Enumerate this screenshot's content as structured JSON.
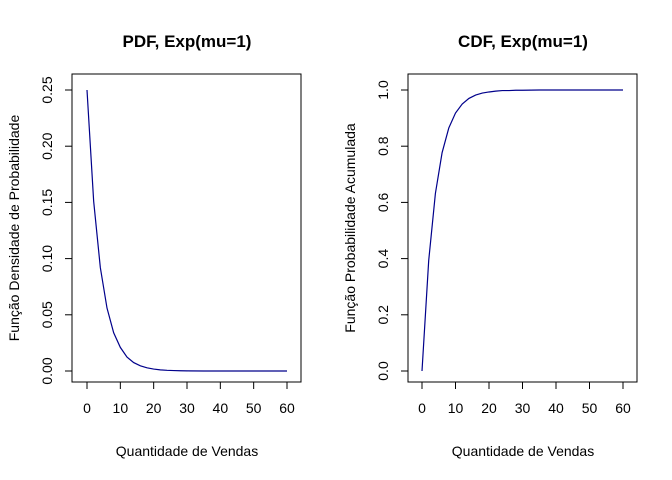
{
  "chart_data": [
    {
      "type": "line",
      "title": "PDF, Exp(mu=1)",
      "xlabel": "Quantidade de Vendas",
      "ylabel": "Função Densidade de Probabilidade",
      "xlim": [
        0,
        60
      ],
      "ylim": [
        0,
        0.25
      ],
      "xticks": [
        0,
        10,
        20,
        30,
        40,
        50,
        60
      ],
      "xtick_labels": [
        "0",
        "10",
        "20",
        "30",
        "40",
        "50",
        "60"
      ],
      "yticks": [
        0,
        0.05,
        0.1,
        0.15,
        0.2,
        0.25
      ],
      "ytick_labels": [
        "0.00",
        "0.05",
        "0.10",
        "0.15",
        "0.20",
        "0.25"
      ],
      "color": "#00008b",
      "grid": false,
      "series": [
        {
          "x": [
            0,
            2,
            4,
            6,
            8,
            10,
            12,
            14,
            16,
            18,
            20,
            22,
            24,
            26,
            28,
            30,
            35,
            40,
            45,
            50,
            55,
            60
          ],
          "y": [
            0.25,
            0.151,
            0.092,
            0.056,
            0.034,
            0.021,
            0.0124,
            0.0075,
            0.0046,
            0.0028,
            0.0017,
            0.001,
            0.0006,
            0.0004,
            0.0002,
            0.0001,
            0.0,
            0.0,
            0.0,
            0.0,
            0.0,
            0.0
          ]
        }
      ]
    },
    {
      "type": "line",
      "title": "CDF, Exp(mu=1)",
      "xlabel": "Quantidade de Vendas",
      "ylabel": "Função Probabilidade Acumulada",
      "xlim": [
        0,
        60
      ],
      "ylim": [
        0,
        1
      ],
      "xticks": [
        0,
        10,
        20,
        30,
        40,
        50,
        60
      ],
      "xtick_labels": [
        "0",
        "10",
        "20",
        "30",
        "40",
        "50",
        "60"
      ],
      "yticks": [
        0,
        0.2,
        0.4,
        0.6,
        0.8,
        1.0
      ],
      "ytick_labels": [
        "0.0",
        "0.2",
        "0.4",
        "0.6",
        "0.8",
        "1.0"
      ],
      "color": "#00008b",
      "grid": false,
      "series": [
        {
          "x": [
            0,
            2,
            4,
            6,
            8,
            10,
            12,
            14,
            16,
            18,
            20,
            22,
            24,
            26,
            28,
            30,
            35,
            40,
            45,
            50,
            55,
            60
          ],
          "y": [
            0.0,
            0.393,
            0.632,
            0.777,
            0.865,
            0.918,
            0.95,
            0.97,
            0.982,
            0.989,
            0.993,
            0.996,
            0.998,
            0.998,
            0.999,
            0.999,
            1.0,
            1.0,
            1.0,
            1.0,
            1.0,
            1.0
          ]
        }
      ]
    }
  ]
}
